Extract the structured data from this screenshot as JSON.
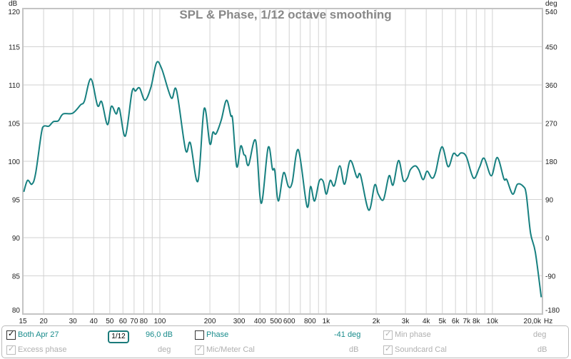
{
  "chart_data": {
    "type": "line",
    "title": "SPL & Phase, 1/12 octave smoothing",
    "y_unit": "dB",
    "y2_unit": "deg",
    "x_unit": "Hz",
    "x_scale": "log",
    "xlim": [
      15,
      20000
    ],
    "ylim": [
      80,
      120
    ],
    "y2lim": [
      -180,
      540
    ],
    "grid": true,
    "y_ticks": [
      "120",
      "115",
      "110",
      "105",
      "100",
      "95",
      "90",
      "85",
      "80"
    ],
    "y2_ticks": [
      "540",
      "450",
      "360",
      "270",
      "180",
      "90",
      "0",
      "-90",
      "-180"
    ],
    "x_ticks": [
      {
        "v": 15,
        "l": "15"
      },
      {
        "v": 20,
        "l": "20"
      },
      {
        "v": 30,
        "l": "30"
      },
      {
        "v": 40,
        "l": "40"
      },
      {
        "v": 50,
        "l": "50"
      },
      {
        "v": 60,
        "l": "60"
      },
      {
        "v": 70,
        "l": "70"
      },
      {
        "v": 80,
        "l": "80"
      },
      {
        "v": 100,
        "l": "100"
      },
      {
        "v": 200,
        "l": "200"
      },
      {
        "v": 300,
        "l": "300"
      },
      {
        "v": 400,
        "l": "400"
      },
      {
        "v": 500,
        "l": "500"
      },
      {
        "v": 600,
        "l": "600"
      },
      {
        "v": 800,
        "l": "800"
      },
      {
        "v": 1000,
        "l": "1k"
      },
      {
        "v": 2000,
        "l": "2k"
      },
      {
        "v": 3000,
        "l": "3k"
      },
      {
        "v": 4000,
        "l": "4k"
      },
      {
        "v": 5000,
        "l": "5k"
      },
      {
        "v": 6000,
        "l": "6k"
      },
      {
        "v": 7000,
        "l": "7k"
      },
      {
        "v": 8000,
        "l": "8k"
      },
      {
        "v": 10000,
        "l": "10k"
      },
      {
        "v": 20000,
        "l": "20,0k"
      }
    ],
    "series": [
      {
        "color": "#178080",
        "points": [
          [
            15.2,
            96.0
          ],
          [
            16.0,
            97.5
          ],
          [
            17.0,
            97.0
          ],
          [
            17.9,
            98.4
          ],
          [
            19.4,
            103.7
          ],
          [
            20.1,
            104.6
          ],
          [
            21.5,
            104.6
          ],
          [
            22.9,
            105.2
          ],
          [
            24.5,
            105.3
          ],
          [
            26.2,
            106.2
          ],
          [
            29.9,
            106.3
          ],
          [
            33.4,
            107.4
          ],
          [
            35.2,
            107.9
          ],
          [
            38.5,
            110.8
          ],
          [
            42.2,
            107.3
          ],
          [
            44.7,
            107.8
          ],
          [
            48.4,
            104.8
          ],
          [
            51.1,
            107.2
          ],
          [
            54.6,
            106.2
          ],
          [
            57.1,
            106.9
          ],
          [
            62.0,
            103.3
          ],
          [
            68.0,
            109.1
          ],
          [
            71.4,
            109.2
          ],
          [
            75.5,
            109.6
          ],
          [
            81.4,
            108.0
          ],
          [
            88.4,
            109.7
          ],
          [
            95.5,
            112.9
          ],
          [
            102.7,
            112.1
          ],
          [
            117.1,
            108.3
          ],
          [
            125.9,
            109.3
          ],
          [
            142.8,
            101.5
          ],
          [
            152.6,
            102.4
          ],
          [
            169.5,
            97.4
          ],
          [
            184.7,
            106.9
          ],
          [
            199.8,
            102.3
          ],
          [
            208.5,
            103.8
          ],
          [
            217.8,
            103.6
          ],
          [
            234.1,
            105.4
          ],
          [
            251.6,
            108.0
          ],
          [
            267,
            106.0
          ],
          [
            274.3,
            105.4
          ],
          [
            290,
            99.3
          ],
          [
            306.6,
            102.0
          ],
          [
            320,
            100.9
          ],
          [
            327.5,
            100.7
          ],
          [
            341.7,
            99.5
          ],
          [
            377.1,
            102.7
          ],
          [
            407,
            94.5
          ],
          [
            448,
            101.8
          ],
          [
            475.3,
            99.0
          ],
          [
            491,
            98.8
          ],
          [
            516,
            94.8
          ],
          [
            555,
            98.5
          ],
          [
            593,
            96.7
          ],
          [
            625,
            97.2
          ],
          [
            681,
            101.5
          ],
          [
            767,
            94.1
          ],
          [
            806,
            96.7
          ],
          [
            852,
            94.8
          ],
          [
            909,
            97.4
          ],
          [
            959,
            97.4
          ],
          [
            1003,
            95.7
          ],
          [
            1059,
            97.5
          ],
          [
            1120,
            96.8
          ],
          [
            1208,
            99.4
          ],
          [
            1291,
            97.0
          ],
          [
            1397,
            100.1
          ],
          [
            1531,
            97.9
          ],
          [
            1609,
            98.2
          ],
          [
            1805,
            93.6
          ],
          [
            1960,
            96.9
          ],
          [
            2060,
            95.7
          ],
          [
            2214,
            95.0
          ],
          [
            2390,
            98.1
          ],
          [
            2528,
            96.9
          ],
          [
            2727,
            100.1
          ],
          [
            2912,
            97.5
          ],
          [
            3080,
            97.8
          ],
          [
            3213,
            98.9
          ],
          [
            3432,
            99.4
          ],
          [
            3607,
            98.9
          ],
          [
            3830,
            97.6
          ],
          [
            4048,
            98.7
          ],
          [
            4323,
            97.8
          ],
          [
            4545,
            98.5
          ],
          [
            4970,
            101.9
          ],
          [
            5417,
            99.3
          ],
          [
            5823,
            101.0
          ],
          [
            6160,
            100.7
          ],
          [
            6492,
            101.1
          ],
          [
            6972,
            100.6
          ],
          [
            7700,
            97.8
          ],
          [
            8358,
            99.2
          ],
          [
            8921,
            100.4
          ],
          [
            9850,
            98.1
          ],
          [
            10700,
            100.5
          ],
          [
            11730,
            97.7
          ],
          [
            12200,
            97.6
          ],
          [
            13250,
            95.7
          ],
          [
            14150,
            97.0
          ],
          [
            15370,
            96.7
          ],
          [
            16000,
            95.6
          ],
          [
            16960,
            90.6
          ],
          [
            18120,
            88.1
          ],
          [
            19670,
            82.2
          ]
        ]
      }
    ]
  },
  "legend": {
    "row1": [
      {
        "label": "Both Apr 27",
        "checked": true,
        "enabled": true
      },
      {
        "smoothing_num": "1",
        "smoothing_den": "12"
      },
      {
        "value": "96,0 dB"
      },
      {
        "label": "Phase",
        "checked": false,
        "enabled": true
      },
      {
        "value": "-41 deg"
      },
      {
        "label": "Min phase",
        "checked": true,
        "enabled": false
      },
      {
        "value": "deg"
      }
    ],
    "row2": [
      {
        "label": "Excess phase",
        "checked": true,
        "enabled": false
      },
      {
        "value": "deg"
      },
      {
        "label": "Mic/Meter Cal",
        "checked": true,
        "enabled": false
      },
      {
        "value": "dB"
      },
      {
        "label": "Soundcard Cal",
        "checked": true,
        "enabled": false
      },
      {
        "value": "dB"
      }
    ]
  }
}
